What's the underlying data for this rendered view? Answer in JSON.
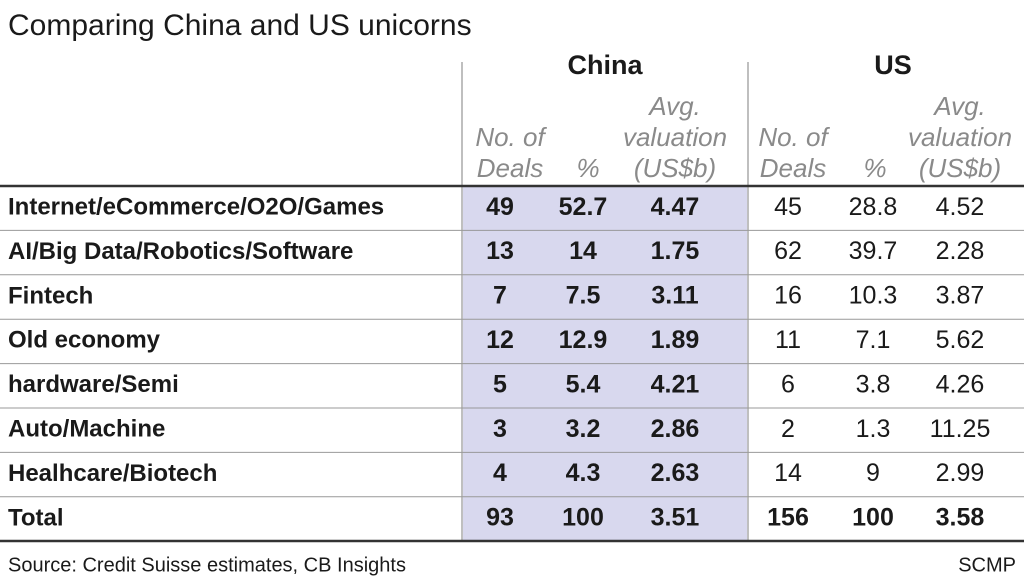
{
  "title": "Comparing China and US unicorns",
  "table": {
    "groups": [
      "China",
      "US"
    ],
    "columns": [
      [
        "No. of",
        "Deals"
      ],
      [
        "%"
      ],
      [
        "Avg.",
        "valuation",
        "(US$b)"
      ]
    ],
    "rows": [
      {
        "label": "Internet/eCommerce/O2O/Games",
        "china": [
          49,
          52.7,
          4.47
        ],
        "us": [
          45,
          28.8,
          4.52
        ]
      },
      {
        "label": "AI/Big Data/Robotics/Software",
        "china": [
          13,
          14,
          1.75
        ],
        "us": [
          62,
          39.7,
          2.28
        ]
      },
      {
        "label": "Fintech",
        "china": [
          7,
          7.5,
          3.11
        ],
        "us": [
          16,
          10.3,
          3.87
        ]
      },
      {
        "label": "Old economy",
        "china": [
          12,
          12.9,
          1.89
        ],
        "us": [
          11,
          7.1,
          5.62
        ]
      },
      {
        "label": "hardware/Semi",
        "china": [
          5,
          5.4,
          4.21
        ],
        "us": [
          6,
          3.8,
          4.26
        ]
      },
      {
        "label": "Auto/Machine",
        "china": [
          3,
          3.2,
          2.86
        ],
        "us": [
          2,
          1.3,
          11.25
        ]
      },
      {
        "label": "Healhcare/Biotech",
        "china": [
          4,
          4.3,
          2.63
        ],
        "us": [
          14,
          9,
          2.99
        ]
      }
    ],
    "total": {
      "label": "Total",
      "china": [
        93,
        100,
        3.51
      ],
      "us": [
        156,
        100,
        3.58
      ]
    }
  },
  "footer": {
    "source": "Source: Credit Suisse estimates, CB Insights",
    "credit": "SCMP"
  }
}
